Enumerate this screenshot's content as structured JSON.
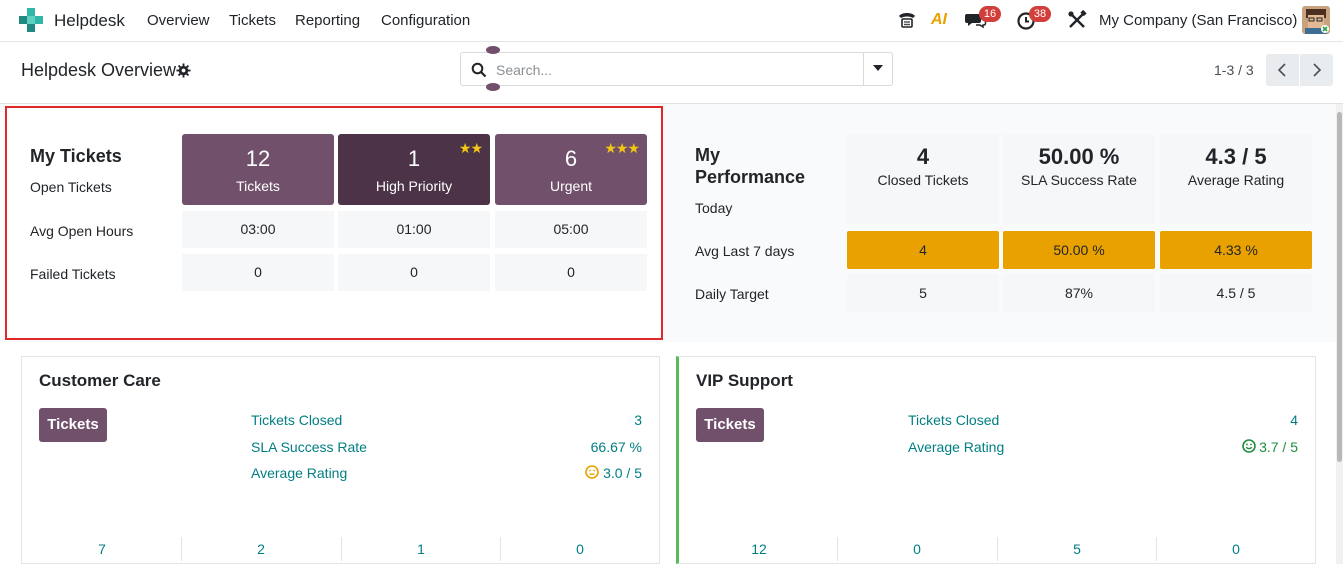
{
  "nav": {
    "app_name": "Helpdesk",
    "menu": [
      "Overview",
      "Tickets",
      "Reporting",
      "Configuration"
    ],
    "messages_count": "16",
    "activities_count": "38",
    "company": "My Company (San Francisco)",
    "ai_label": "AI"
  },
  "control": {
    "title": "Helpdesk Overview",
    "search_placeholder": "Search...",
    "pager": "1-3 / 3"
  },
  "my_tickets": {
    "title": "My Tickets",
    "row_labels": [
      "Open Tickets",
      "Avg Open Hours",
      "Failed Tickets"
    ],
    "tiles": [
      {
        "value": "12",
        "caption": "Tickets",
        "stars": ""
      },
      {
        "value": "1",
        "caption": "High Priority",
        "stars": "★★"
      },
      {
        "value": "6",
        "caption": "Urgent",
        "stars": "★★★"
      }
    ],
    "avg_open_hours": [
      "03:00",
      "01:00",
      "05:00"
    ],
    "failed": [
      "0",
      "0",
      "0"
    ]
  },
  "performance": {
    "title_line1": "My",
    "title_line2": "Performance",
    "row_labels": [
      "Today",
      "Avg Last 7 days",
      "Daily Target"
    ],
    "heads": [
      {
        "value": "4",
        "caption": "Closed Tickets"
      },
      {
        "value": "50.00 %",
        "caption": "SLA Success Rate"
      },
      {
        "value": "4.3 / 5",
        "caption": "Average Rating"
      }
    ],
    "avg7": [
      "4",
      "50.00 %",
      "4.33 %"
    ],
    "target": [
      "5",
      "87%",
      "4.5 / 5"
    ]
  },
  "teams": [
    {
      "name": "Customer Care",
      "button": "Tickets",
      "kpis": [
        {
          "label": "Tickets Closed",
          "value": "3"
        },
        {
          "label": "SLA Success Rate",
          "value": "66.67 %"
        },
        {
          "label": "Average Rating",
          "value": "3.0 / 5"
        }
      ],
      "footer": [
        "7",
        "2",
        "1",
        "0"
      ]
    },
    {
      "name": "VIP Support",
      "button": "Tickets",
      "kpis": [
        {
          "label": "Tickets Closed",
          "value": "4"
        },
        {
          "label": "Average Rating",
          "value": "3.7 / 5"
        }
      ],
      "footer": [
        "12",
        "0",
        "5",
        "0"
      ]
    }
  ],
  "colors": {
    "brand": "#71506b",
    "brand_dark": "#4d3348",
    "warning": "#e9a100",
    "link": "#017e84",
    "highlight": "#e0272a"
  }
}
